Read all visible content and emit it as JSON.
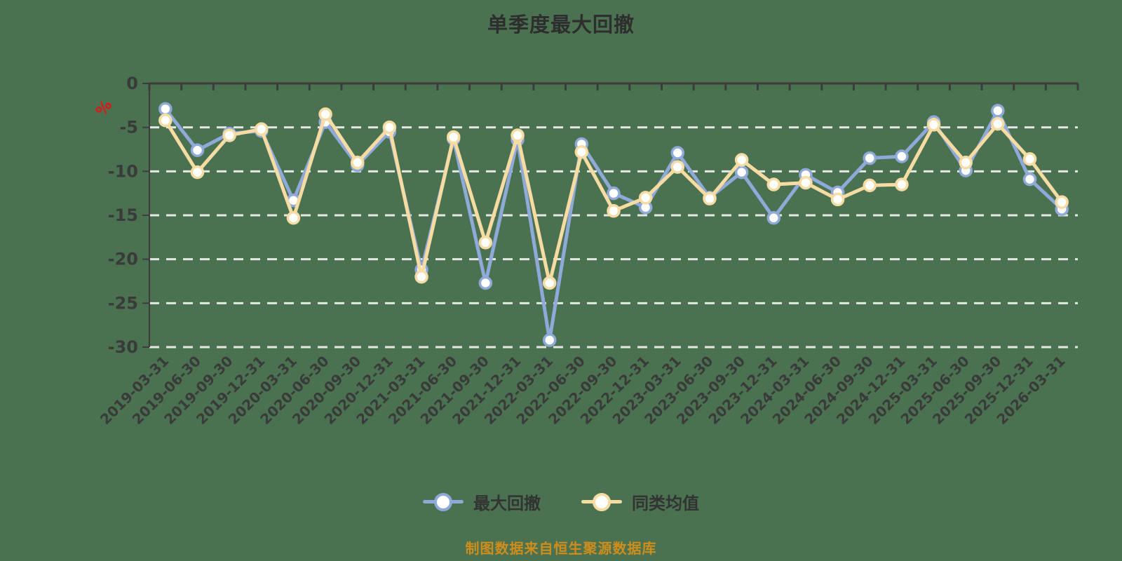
{
  "title": "单季度最大回撤",
  "source_note": "制图数据来自恒生聚源数据库",
  "colors": {
    "background": "#4A7251",
    "title_text": "#2E2E2E",
    "axis_line": "#3C3C3C",
    "tick_text": "#3A3A3A",
    "grid_line": "#E6E6E4",
    "unit_text": "#E01616",
    "legend_text": "#333333",
    "source_text": "#CF8D1C",
    "marker_fill": "#FFFFFF",
    "series_blue": "#8FA9D8",
    "series_yellow": "#F6DCA2"
  },
  "y_axis": {
    "unit": "%"
  },
  "chart_data": {
    "type": "line",
    "title": "单季度最大回撤",
    "categories": [
      "2019-03-31",
      "2019-06-30",
      "2019-09-30",
      "2019-12-31",
      "2020-03-31",
      "2020-06-30",
      "2020-09-30",
      "2020-12-31",
      "2021-03-31",
      "2021-06-30",
      "2021-09-30",
      "2021-12-31",
      "2022-03-31",
      "2022-06-30",
      "2022-09-30",
      "2022-12-31",
      "2023-03-31",
      "2023-06-30",
      "2023-09-30",
      "2023-12-31",
      "2024-03-31",
      "2024-06-30",
      "2024-09-30",
      "2024-12-31",
      "2025-03-31",
      "2025-06-30",
      "2025-09-30",
      "2025-12-31",
      "2026-03-31"
    ],
    "series": [
      {
        "name": "最大回撤",
        "color": "#8FA9D8",
        "values": [
          -2.9,
          -7.6,
          -5.7,
          -5.4,
          -13.3,
          -4.4,
          -9.3,
          -5.5,
          -21.2,
          -6.3,
          -22.7,
          -6.4,
          -29.2,
          -6.9,
          -12.5,
          -14.1,
          -7.9,
          -13.0,
          -10.1,
          -15.3,
          -10.4,
          -12.4,
          -8.5,
          -8.3,
          -4.4,
          -9.9,
          -3.1,
          -10.9,
          -14.3
        ]
      },
      {
        "name": "同类均值",
        "color": "#F6DCA2",
        "values": [
          -4.2,
          -10.1,
          -5.9,
          -5.2,
          -15.3,
          -3.5,
          -9.0,
          -5.0,
          -22.0,
          -6.1,
          -18.1,
          -5.9,
          -22.7,
          -7.8,
          -14.5,
          -13.0,
          -9.5,
          -13.1,
          -8.7,
          -11.5,
          -11.3,
          -13.2,
          -11.6,
          -11.5,
          -4.7,
          -9.0,
          -4.6,
          -8.6,
          -13.5
        ]
      }
    ],
    "ylabel": "%",
    "ylim": [
      -30,
      0
    ],
    "yticks": [
      0,
      -5,
      -10,
      -15,
      -20,
      -25,
      -30
    ],
    "grid": "horizontal-dashed",
    "legend_position": "bottom"
  }
}
